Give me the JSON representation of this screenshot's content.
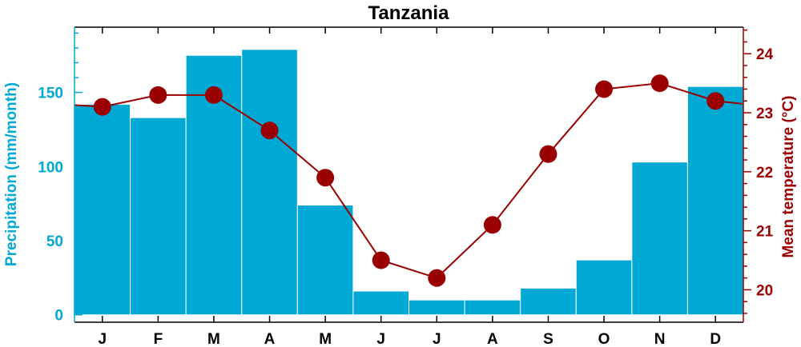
{
  "chart_data": {
    "type": "bar+line",
    "title": "Tanzania",
    "categories": [
      "J",
      "F",
      "M",
      "A",
      "M",
      "J",
      "J",
      "A",
      "S",
      "O",
      "N",
      "D"
    ],
    "series": [
      {
        "name": "Precipitation",
        "type": "bar",
        "axis": "left",
        "values": [
          142,
          133,
          175,
          179,
          74,
          16,
          10,
          10,
          18,
          37,
          103,
          154
        ]
      },
      {
        "name": "Mean temperature",
        "type": "line",
        "axis": "right",
        "values": [
          23.1,
          23.3,
          23.3,
          22.7,
          21.9,
          20.5,
          20.2,
          21.1,
          22.3,
          23.4,
          23.5,
          23.2
        ]
      }
    ],
    "ylabel": "Precipitation (mm/month)",
    "ylabel_right": "Mean temperature (°C)",
    "ylim": [
      -5,
      194
    ],
    "ylim_right": [
      19.45,
      24.45
    ],
    "yticks": [
      "0",
      "50",
      "100",
      "150"
    ],
    "yticks_right": [
      "20",
      "21",
      "22",
      "23",
      "24"
    ],
    "colors": {
      "bars": "#00a8d4",
      "line": "#9b0000",
      "left_axis": "#00a8d4",
      "right_axis": "#9b0000"
    }
  }
}
